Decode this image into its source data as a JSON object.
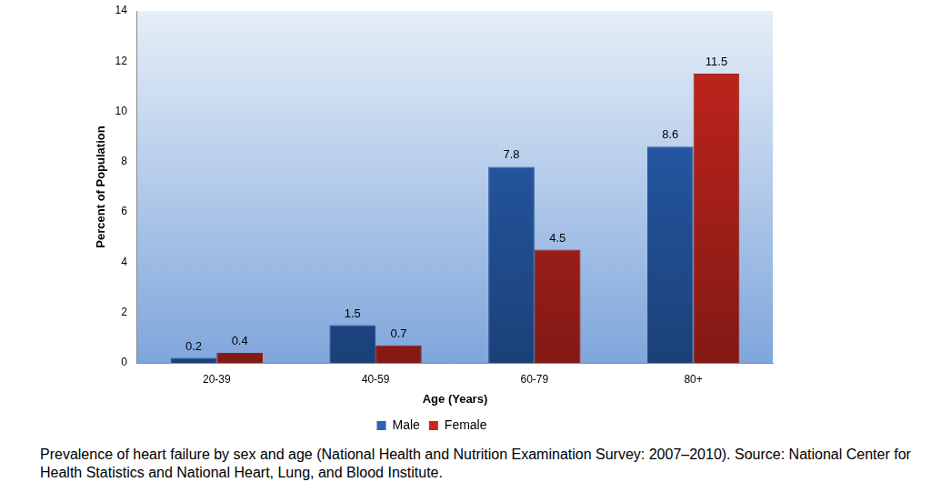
{
  "chart_data": {
    "type": "bar",
    "caption": "Prevalence of heart failure by sex and age (National Health and Nutrition Examination Survey: 2007–2010). Source: National Center for Health Statistics and National Heart, Lung, and Blood Institute.",
    "x_label": "Age (Years)",
    "y_label": "Percent of Population",
    "categories": [
      "20-39",
      "40-59",
      "60-79",
      "80+"
    ],
    "series": [
      {
        "name": "Male",
        "color": "#2a63b8",
        "values": [
          0.2,
          1.5,
          7.8,
          8.6
        ]
      },
      {
        "name": "Female",
        "color": "#c8261e",
        "values": [
          0.4,
          0.7,
          4.5,
          11.5
        ]
      }
    ],
    "ylim": [
      0,
      14
    ],
    "yticks": [
      0,
      2,
      4,
      6,
      8,
      10,
      12,
      14
    ],
    "grid": false,
    "legend": "bottom",
    "data_labels": true
  }
}
